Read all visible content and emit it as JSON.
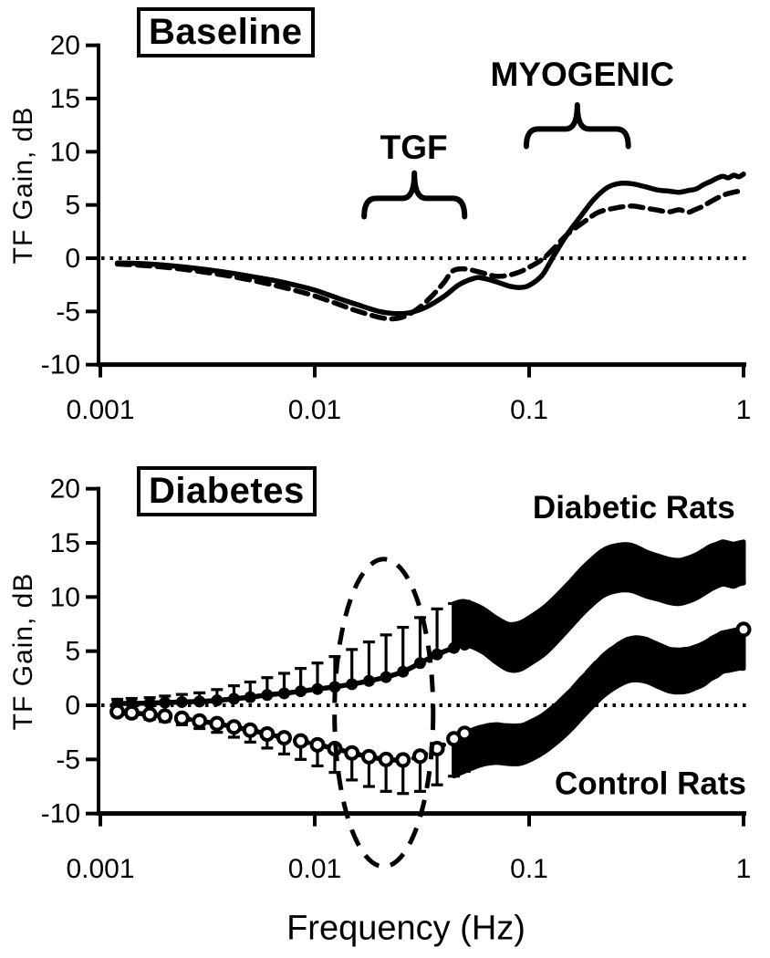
{
  "figure": {
    "x_axis_label": "Frequency (Hz)",
    "y_axis_label": "TF Gain, dB",
    "x_scale": "log",
    "x_tick_labels": [
      "0.001",
      "0.01",
      "0.1",
      "1"
    ],
    "x_tick_values": [
      0.001,
      0.01,
      0.1,
      1
    ],
    "y_tick_labels": [
      "20",
      "15",
      "10",
      "5",
      "0",
      "-5",
      "-10"
    ],
    "y_tick_values": [
      20,
      15,
      10,
      5,
      0,
      -5,
      -10
    ],
    "ylim": [
      -10,
      20
    ],
    "xlim": [
      0.001,
      1
    ],
    "zero_reference_line": 0,
    "ink_color": "#000000",
    "background_color": "#ffffff"
  },
  "chart_data": [
    {
      "panel": "top",
      "title": "Baseline",
      "type": "line",
      "x_scale": "log",
      "xlim": [
        0.001,
        1
      ],
      "ylim": [
        -10,
        20
      ],
      "grid": false,
      "legend": "none",
      "annotations": [
        {
          "id": "tgf",
          "text": "TGF",
          "label_at": {
            "freq": 0.029,
            "gain": 10.45
          },
          "brace_span_freq": [
            0.017,
            0.05
          ],
          "brace_gain_base": 3.9,
          "brace_gain_tip": 8.0
        },
        {
          "id": "myogenic",
          "text": "MYOGENIC",
          "label_at": {
            "freq": 0.177,
            "gain": 17.3
          },
          "brace_span_freq": [
            0.097,
            0.29
          ],
          "brace_gain_base": 10.5,
          "brace_gain_tip": 14.4
        }
      ],
      "series": [
        {
          "name": "solid-curve",
          "line_style": "solid",
          "marker": "none",
          "points": [
            [
              0.0012,
              -0.45
            ],
            [
              0.0015,
              -0.5
            ],
            [
              0.002,
              -0.65
            ],
            [
              0.0028,
              -0.95
            ],
            [
              0.0038,
              -1.3
            ],
            [
              0.005,
              -1.7
            ],
            [
              0.0065,
              -2.1
            ],
            [
              0.008,
              -2.5
            ],
            [
              0.01,
              -3.0
            ],
            [
              0.013,
              -3.8
            ],
            [
              0.016,
              -4.4
            ],
            [
              0.02,
              -5.0
            ],
            [
              0.024,
              -5.2
            ],
            [
              0.028,
              -5.1
            ],
            [
              0.033,
              -4.6
            ],
            [
              0.04,
              -3.6
            ],
            [
              0.047,
              -2.5
            ],
            [
              0.055,
              -1.9
            ],
            [
              0.06,
              -1.85
            ],
            [
              0.07,
              -2.2
            ],
            [
              0.08,
              -2.6
            ],
            [
              0.09,
              -2.75
            ],
            [
              0.1,
              -2.55
            ],
            [
              0.115,
              -1.6
            ],
            [
              0.13,
              0.2
            ],
            [
              0.15,
              2.2
            ],
            [
              0.175,
              4.0
            ],
            [
              0.2,
              5.5
            ],
            [
              0.23,
              6.6
            ],
            [
              0.26,
              7.0
            ],
            [
              0.3,
              7.0
            ],
            [
              0.35,
              6.7
            ],
            [
              0.4,
              6.4
            ],
            [
              0.45,
              6.3
            ],
            [
              0.5,
              6.2
            ],
            [
              0.55,
              6.35
            ],
            [
              0.6,
              6.5
            ],
            [
              0.65,
              6.9
            ],
            [
              0.7,
              7.2
            ],
            [
              0.75,
              7.5
            ],
            [
              0.8,
              7.7
            ],
            [
              0.85,
              7.55
            ],
            [
              0.9,
              7.8
            ],
            [
              0.95,
              7.65
            ],
            [
              1.0,
              7.9
            ]
          ]
        },
        {
          "name": "dashed-curve",
          "line_style": "dashed",
          "marker": "none",
          "points": [
            [
              0.0012,
              -0.55
            ],
            [
              0.0015,
              -0.65
            ],
            [
              0.002,
              -0.85
            ],
            [
              0.0028,
              -1.2
            ],
            [
              0.0038,
              -1.6
            ],
            [
              0.005,
              -2.05
            ],
            [
              0.0065,
              -2.55
            ],
            [
              0.008,
              -3.0
            ],
            [
              0.01,
              -3.55
            ],
            [
              0.013,
              -4.35
            ],
            [
              0.016,
              -5.0
            ],
            [
              0.02,
              -5.55
            ],
            [
              0.023,
              -5.7
            ],
            [
              0.026,
              -5.5
            ],
            [
              0.03,
              -4.8
            ],
            [
              0.035,
              -3.6
            ],
            [
              0.04,
              -2.3
            ],
            [
              0.044,
              -1.2
            ],
            [
              0.05,
              -1.0
            ],
            [
              0.06,
              -1.35
            ],
            [
              0.07,
              -1.7
            ],
            [
              0.08,
              -1.6
            ],
            [
              0.09,
              -1.3
            ],
            [
              0.1,
              -0.85
            ],
            [
              0.115,
              -0.1
            ],
            [
              0.13,
              0.9
            ],
            [
              0.15,
              2.2
            ],
            [
              0.18,
              3.4
            ],
            [
              0.21,
              4.3
            ],
            [
              0.25,
              4.7
            ],
            [
              0.3,
              4.9
            ],
            [
              0.35,
              4.7
            ],
            [
              0.4,
              4.5
            ],
            [
              0.45,
              4.35
            ],
            [
              0.5,
              4.55
            ],
            [
              0.55,
              4.3
            ],
            [
              0.6,
              4.6
            ],
            [
              0.65,
              4.9
            ],
            [
              0.7,
              5.3
            ],
            [
              0.8,
              5.9
            ],
            [
              0.9,
              6.2
            ],
            [
              1.0,
              6.35
            ]
          ]
        }
      ]
    },
    {
      "panel": "bottom",
      "title": "Diabetes",
      "type": "line",
      "x_scale": "log",
      "xlim": [
        0.001,
        1
      ],
      "ylim": [
        -10,
        20
      ],
      "grid": false,
      "legend": "inline-text",
      "highlight_ellipse": {
        "center_freq": 0.021,
        "center_gain": -0.7,
        "rx_decades": 0.23,
        "ry_db": 14.2,
        "style": "dashed"
      },
      "series": [
        {
          "name": "Diabetic Rats",
          "line_style": "solid",
          "marker": "filled-circle",
          "error_direction": "up",
          "label_at": {
            "freq": 0.308,
            "gain": 18.3
          },
          "points": [
            [
              0.0012,
              0.15,
              0.4
            ],
            [
              0.0014,
              0.18,
              0.45
            ],
            [
              0.0017,
              0.2,
              0.5
            ],
            [
              0.002,
              0.25,
              0.6
            ],
            [
              0.0024,
              0.3,
              0.7
            ],
            [
              0.0029,
              0.35,
              0.8
            ],
            [
              0.0035,
              0.45,
              1.0
            ],
            [
              0.0042,
              0.6,
              1.2
            ],
            [
              0.005,
              0.75,
              1.4
            ],
            [
              0.006,
              0.95,
              1.6
            ],
            [
              0.0072,
              1.1,
              1.85
            ],
            [
              0.0086,
              1.3,
              2.1
            ],
            [
              0.0103,
              1.5,
              2.4
            ],
            [
              0.0124,
              1.7,
              2.8
            ],
            [
              0.0149,
              1.95,
              3.2
            ],
            [
              0.0179,
              2.25,
              3.6
            ],
            [
              0.0215,
              2.6,
              3.9
            ],
            [
              0.0258,
              3.1,
              4.1
            ],
            [
              0.031,
              3.9,
              4.2
            ],
            [
              0.0372,
              4.7,
              4.2
            ],
            [
              0.0446,
              5.3,
              4.1
            ],
            [
              0.05,
              5.6,
              4.0
            ],
            [
              0.06,
              5.0,
              4.0
            ],
            [
              0.07,
              4.0,
              4.1
            ],
            [
              0.08,
              3.3,
              4.2
            ],
            [
              0.09,
              3.3,
              4.3
            ],
            [
              0.1,
              3.8,
              4.3
            ],
            [
              0.12,
              4.9,
              4.3
            ],
            [
              0.15,
              6.9,
              4.2
            ],
            [
              0.18,
              8.6,
              4.2
            ],
            [
              0.22,
              10.1,
              4.2
            ],
            [
              0.26,
              10.6,
              4.2
            ],
            [
              0.3,
              10.6,
              4.2
            ],
            [
              0.35,
              10.1,
              4.1
            ],
            [
              0.4,
              9.8,
              4.0
            ],
            [
              0.45,
              9.5,
              4.0
            ],
            [
              0.5,
              9.4,
              4.0
            ],
            [
              0.55,
              9.6,
              4.0
            ],
            [
              0.6,
              9.9,
              4.0
            ],
            [
              0.65,
              10.3,
              4.0
            ],
            [
              0.7,
              10.7,
              4.0
            ],
            [
              0.75,
              11.0,
              3.9
            ],
            [
              0.8,
              11.2,
              3.9
            ],
            [
              0.85,
              11.1,
              3.9
            ],
            [
              0.9,
              11.0,
              3.9
            ],
            [
              0.95,
              11.2,
              3.8
            ],
            [
              1.0,
              11.3,
              3.8
            ]
          ]
        },
        {
          "name": "Control Rats",
          "line_style": "dashed",
          "marker": "open-circle",
          "error_direction": "down",
          "label_at": {
            "freq": 0.368,
            "gain": -7.2
          },
          "points": [
            [
              0.0012,
              -0.6,
              0.35
            ],
            [
              0.0014,
              -0.7,
              0.4
            ],
            [
              0.0017,
              -0.85,
              0.45
            ],
            [
              0.002,
              -1.0,
              0.5
            ],
            [
              0.0024,
              -1.2,
              0.6
            ],
            [
              0.0029,
              -1.45,
              0.7
            ],
            [
              0.0035,
              -1.7,
              0.8
            ],
            [
              0.0042,
              -2.0,
              0.95
            ],
            [
              0.005,
              -2.3,
              1.1
            ],
            [
              0.006,
              -2.65,
              1.3
            ],
            [
              0.0072,
              -3.0,
              1.5
            ],
            [
              0.0086,
              -3.3,
              1.7
            ],
            [
              0.0103,
              -3.65,
              1.95
            ],
            [
              0.0124,
              -4.0,
              2.2
            ],
            [
              0.0149,
              -4.4,
              2.5
            ],
            [
              0.0179,
              -4.75,
              2.75
            ],
            [
              0.0215,
              -5.0,
              2.95
            ],
            [
              0.0258,
              -5.05,
              3.1
            ],
            [
              0.031,
              -4.7,
              3.25
            ],
            [
              0.0372,
              -4.0,
              3.35
            ],
            [
              0.0446,
              -3.1,
              3.45
            ],
            [
              0.05,
              -2.6,
              3.5
            ],
            [
              0.06,
              -2.0,
              3.5
            ],
            [
              0.07,
              -1.8,
              3.5
            ],
            [
              0.08,
              -1.9,
              3.5
            ],
            [
              0.09,
              -1.9,
              3.5
            ],
            [
              0.1,
              -1.6,
              3.5
            ],
            [
              0.12,
              -0.7,
              3.5
            ],
            [
              0.15,
              1.0,
              3.6
            ],
            [
              0.18,
              2.7,
              3.65
            ],
            [
              0.22,
              4.5,
              3.7
            ],
            [
              0.26,
              5.6,
              3.8
            ],
            [
              0.3,
              6.2,
              3.9
            ],
            [
              0.35,
              6.1,
              3.9
            ],
            [
              0.4,
              5.6,
              3.9
            ],
            [
              0.45,
              5.2,
              3.9
            ],
            [
              0.5,
              5.1,
              3.9
            ],
            [
              0.55,
              5.2,
              3.9
            ],
            [
              0.6,
              5.4,
              3.8
            ],
            [
              0.65,
              5.7,
              3.8
            ],
            [
              0.7,
              6.1,
              3.7
            ],
            [
              0.75,
              6.4,
              3.7
            ],
            [
              0.8,
              6.7,
              3.6
            ],
            [
              0.85,
              6.8,
              3.6
            ],
            [
              0.9,
              6.9,
              3.6
            ],
            [
              0.95,
              7.0,
              3.6
            ],
            [
              1.0,
              7.0,
              3.6
            ]
          ]
        }
      ]
    }
  ]
}
